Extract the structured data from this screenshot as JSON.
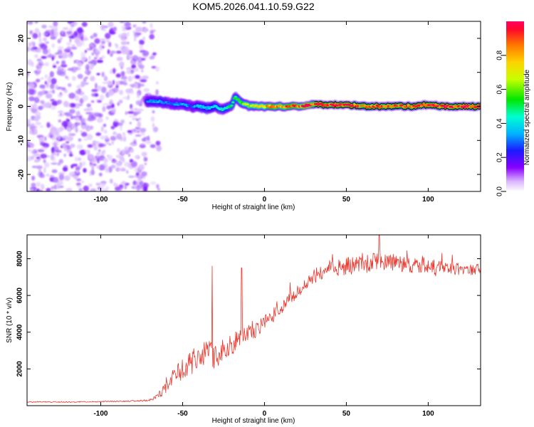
{
  "figure_title": "KOM5.2026.041.10.59.G22",
  "colors": {
    "snr_line": "#e8392f",
    "tec_band_outline": "#000000",
    "scatter_purple": "#8a2be2"
  },
  "chart_data": [
    {
      "type": "heatmap",
      "title": "KOM5.2026.041.10.59.G22",
      "xlabel": "Height of straight line (km)",
      "ylabel": "Frequency (Hz)",
      "xlim": [
        -145,
        132
      ],
      "ylim": [
        -25,
        25
      ],
      "xticks": [
        -100,
        -50,
        0,
        50,
        100
      ],
      "xtick_labels": [
        "-100",
        "-50",
        "0",
        "50",
        "100"
      ],
      "yticks": [
        -20,
        -10,
        0,
        10,
        20
      ],
      "ytick_labels": [
        "-20",
        "-10",
        "0",
        "10",
        "20"
      ],
      "noise_region_x": [
        -145,
        -72
      ],
      "signal_start_x": -72,
      "ridge": {
        "x": [
          -72,
          -65,
          -58,
          -50,
          -45,
          -40,
          -35,
          -30,
          -25,
          -20,
          -18,
          -15,
          -12,
          -8,
          -4,
          0,
          10,
          20,
          30,
          40,
          50,
          60,
          70,
          80,
          90,
          100,
          110,
          120,
          132
        ],
        "y": [
          1.5,
          1.5,
          1.0,
          0.5,
          0.0,
          0.0,
          -0.5,
          0.0,
          -1.0,
          0.5,
          3.0,
          1.5,
          0.5,
          0.0,
          0.0,
          0.0,
          0.0,
          0.0,
          0.5,
          0.5,
          0.5,
          0.0,
          0.0,
          0.0,
          0.0,
          0.5,
          0.0,
          0.0,
          0.0
        ],
        "amp": [
          0.3,
          0.35,
          0.3,
          0.35,
          0.3,
          0.4,
          0.35,
          0.4,
          0.45,
          0.5,
          0.55,
          0.55,
          0.65,
          0.7,
          0.75,
          0.8,
          0.85,
          0.9,
          0.95,
          0.95,
          0.95,
          0.92,
          0.9,
          0.92,
          0.95,
          0.92,
          0.95,
          0.95,
          0.95
        ]
      },
      "colorbar": {
        "label": "Normalized spectral amplitude",
        "range": [
          0.0,
          1.0
        ],
        "ticks": [
          0.0,
          0.2,
          0.4,
          0.6,
          0.8
        ],
        "tick_labels": [
          "0.0",
          "0.2",
          "0.4",
          "0.6",
          "0.8"
        ]
      }
    },
    {
      "type": "line",
      "xlabel": "Height of straight line (km)",
      "ylabel": "SNR (10 * v/v)",
      "xlim": [
        -145,
        132
      ],
      "ylim": [
        0,
        9300
      ],
      "xticks": [
        -100,
        -50,
        0,
        50,
        100
      ],
      "xtick_labels": [
        "-100",
        "-50",
        "0",
        "50",
        "100"
      ],
      "yticks": [
        2000,
        4000,
        6000,
        8000
      ],
      "ytick_labels": [
        "2000",
        "4000",
        "6000",
        "8000"
      ],
      "series": [
        {
          "name": "SNR",
          "x": [
            -145,
            -120,
            -100,
            -80,
            -70,
            -65,
            -60,
            -55,
            -50,
            -45,
            -40,
            -35,
            -30,
            -25,
            -20,
            -15,
            -10,
            -5,
            0,
            5,
            10,
            15,
            20,
            25,
            30,
            35,
            40,
            50,
            60,
            70,
            80,
            90,
            100,
            110,
            120,
            132
          ],
          "y": [
            200,
            200,
            220,
            250,
            300,
            500,
            1000,
            1600,
            2000,
            2300,
            2600,
            2900,
            2600,
            3100,
            3300,
            3600,
            3900,
            4100,
            4500,
            4900,
            5300,
            5800,
            6200,
            6700,
            7000,
            7300,
            7500,
            7600,
            7700,
            7800,
            7750,
            7700,
            7600,
            7500,
            7450,
            7400
          ],
          "noise": [
            30,
            30,
            30,
            40,
            60,
            150,
            350,
            500,
            600,
            650,
            700,
            700,
            650,
            600,
            600,
            550,
            500,
            450,
            420,
            400,
            380,
            360,
            350,
            380,
            400,
            450,
            480,
            500,
            550,
            550,
            500,
            480,
            450,
            400,
            350,
            300
          ]
        }
      ],
      "spikes": [
        {
          "x": -32,
          "y": 7600
        },
        {
          "x": -14,
          "y": 7500
        },
        {
          "x": 70,
          "y": 9300
        }
      ]
    }
  ]
}
